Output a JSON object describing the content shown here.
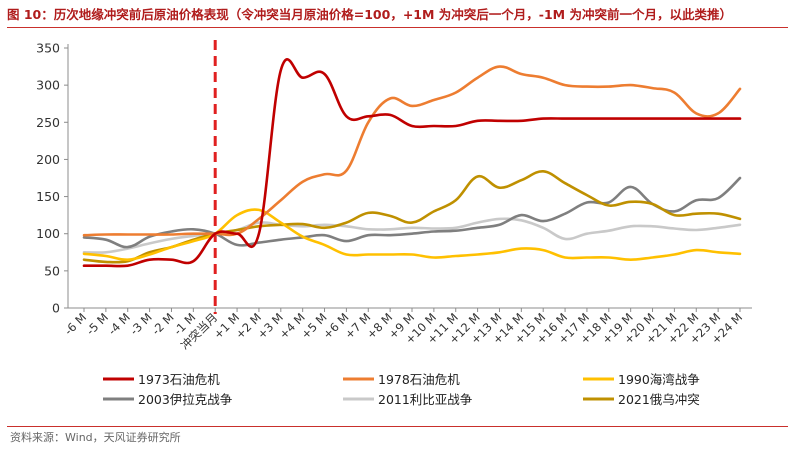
{
  "header": {
    "title": "图 10：历次地缘冲突前后原油价格表现（令冲突当月原油价格=100，+1M 为冲突后一个月，-1M 为冲突前一个月，以此类推）"
  },
  "footer": {
    "source": "资料来源：Wind，天风证券研究所"
  },
  "colors": {
    "s1973": "#c00000",
    "s1978": "#ed7d31",
    "s1990": "#ffc000",
    "s2003": "#7f7f7f",
    "s2011": "#c9c9c9",
    "s2021": "#bf9000",
    "event_line": "#e02020"
  },
  "chart_data": {
    "type": "line",
    "title": "",
    "xlabel": "",
    "ylabel": "",
    "ylim": [
      0,
      350
    ],
    "yticks": [
      0,
      50,
      100,
      150,
      200,
      250,
      300,
      350
    ],
    "grid": false,
    "legend_position": "bottom",
    "event_marker": "冲突当月",
    "categories": [
      "-6 M",
      "-5 M",
      "-4 M",
      "-3 M",
      "-2 M",
      "-1 M",
      "冲突当月",
      "+1 M",
      "+2 M",
      "+3 M",
      "+4 M",
      "+5 M",
      "+6 M",
      "+7 M",
      "+8 M",
      "+9 M",
      "+10 M",
      "+11 M",
      "+12 M",
      "+13 M",
      "+14 M",
      "+15 M",
      "+16 M",
      "+17 M",
      "+18 M",
      "+19 M",
      "+20 M",
      "+21 M",
      "+22 M",
      "+23 M",
      "+24 M"
    ],
    "series": [
      {
        "name": "1973石油危机",
        "color_key": "s1973",
        "values": [
          57,
          57,
          57,
          65,
          65,
          63,
          100,
          100,
          100,
          320,
          310,
          315,
          258,
          258,
          260,
          245,
          245,
          245,
          252,
          252,
          252,
          255,
          255,
          255,
          255,
          255,
          255,
          255,
          255,
          255,
          255
        ]
      },
      {
        "name": "1978石油危机",
        "color_key": "s1978",
        "values": [
          98,
          99,
          99,
          99,
          99,
          100,
          100,
          100,
          120,
          145,
          170,
          180,
          185,
          250,
          282,
          272,
          280,
          290,
          310,
          325,
          315,
          310,
          300,
          298,
          298,
          300,
          296,
          290,
          262,
          262,
          295
        ]
      },
      {
        "name": "1990海湾战争",
        "color_key": "s1990",
        "values": [
          73,
          70,
          65,
          72,
          82,
          90,
          100,
          125,
          132,
          115,
          96,
          85,
          72,
          72,
          72,
          72,
          68,
          70,
          72,
          75,
          80,
          78,
          68,
          68,
          68,
          65,
          68,
          72,
          78,
          75,
          73
        ]
      },
      {
        "name": "2003伊拉克战争",
        "color_key": "s2003",
        "values": [
          95,
          92,
          82,
          96,
          103,
          106,
          100,
          85,
          88,
          92,
          95,
          98,
          90,
          98,
          98,
          100,
          103,
          104,
          108,
          112,
          125,
          117,
          127,
          142,
          142,
          163,
          140,
          130,
          145,
          148,
          175
        ]
      },
      {
        "name": "2011利比亚战争",
        "color_key": "s2011",
        "values": [
          75,
          75,
          80,
          87,
          93,
          97,
          100,
          105,
          115,
          112,
          110,
          112,
          110,
          106,
          106,
          108,
          107,
          108,
          115,
          120,
          118,
          108,
          93,
          100,
          104,
          110,
          110,
          107,
          105,
          108,
          112
        ]
      },
      {
        "name": "2021俄乌冲突",
        "color_key": "s2021",
        "values": [
          65,
          62,
          63,
          75,
          82,
          92,
          100,
          105,
          110,
          112,
          113,
          108,
          115,
          128,
          124,
          115,
          130,
          145,
          177,
          162,
          172,
          184,
          168,
          152,
          138,
          143,
          140,
          125,
          127,
          127,
          120
        ]
      }
    ]
  }
}
